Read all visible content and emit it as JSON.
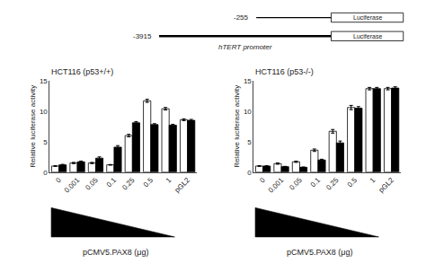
{
  "chart_data": [
    {
      "type": "bar",
      "title": "HCT116 (p53+/+)",
      "xlabel": "pCMV5.PAX8 (μg)",
      "ylabel": "Relative luciferase activity",
      "categories": [
        "0",
        "0.001",
        "0.05",
        "0.1",
        "0.25",
        "0.5",
        "1",
        "pGL2"
      ],
      "series": [
        {
          "color": "white",
          "values": [
            1.0,
            1.5,
            1.5,
            1.2,
            6.0,
            11.7,
            10.4,
            8.6
          ],
          "errors": [
            0.05,
            0.1,
            0.1,
            0.05,
            0.2,
            0.25,
            0.2,
            0.15
          ]
        },
        {
          "color": "black",
          "values": [
            1.2,
            1.7,
            2.3,
            4.1,
            8.1,
            7.8,
            7.7,
            8.5
          ],
          "errors": [
            0.08,
            0.12,
            0.2,
            0.25,
            0.2,
            0.15,
            0.15,
            0.15
          ]
        }
      ],
      "ylim": [
        0,
        15
      ],
      "yticks": [
        0,
        5,
        10,
        15
      ],
      "grid": false,
      "annotations": [
        "-255",
        "Luciferase",
        "-3915",
        "Luciferase",
        "hTERT promoter"
      ]
    },
    {
      "type": "bar",
      "title": "HCT116 (p53-/-)",
      "xlabel": "pCMV5.PAX8 (μg)",
      "ylabel": "Relative luciferase activity",
      "categories": [
        "0",
        "0.001",
        "0.05",
        "0.1",
        "0.25",
        "0.5",
        "1",
        "pGL2"
      ],
      "series": [
        {
          "color": "white",
          "values": [
            1.0,
            1.4,
            1.7,
            3.6,
            6.7,
            10.6,
            13.7,
            13.7
          ],
          "errors": [
            0.05,
            0.1,
            0.1,
            0.2,
            0.3,
            0.35,
            0.2,
            0.2
          ]
        },
        {
          "color": "black",
          "values": [
            1.0,
            0.9,
            0.8,
            2.0,
            4.8,
            10.5,
            13.7,
            13.8
          ],
          "errors": [
            0.05,
            0.05,
            0.05,
            0.12,
            0.3,
            0.25,
            0.2,
            0.2
          ]
        }
      ],
      "ylim": [
        0,
        15
      ],
      "yticks": [
        0,
        5,
        10,
        15
      ],
      "grid": false
    }
  ]
}
